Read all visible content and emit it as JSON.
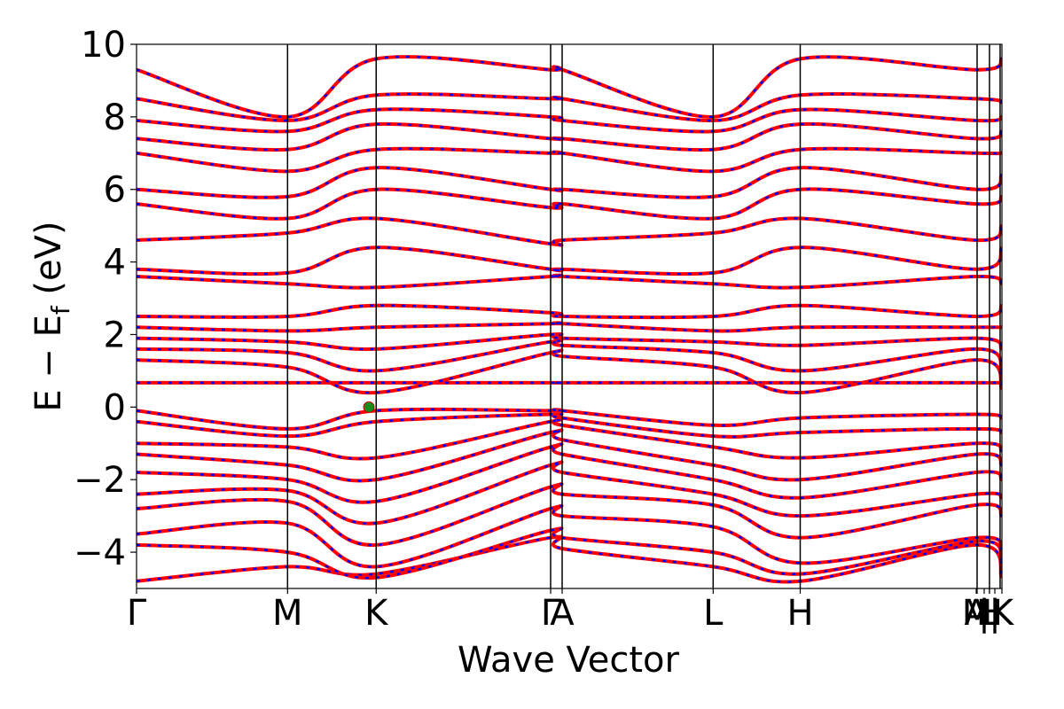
{
  "chart_data": {
    "type": "line",
    "title": "",
    "xlabel": "Wave Vector",
    "ylabel": "E − E",
    "ylabel_sub": "f",
    "ylabel_unit": "(eV)",
    "ylim": [
      -5,
      10
    ],
    "yticks": [
      -4,
      -2,
      0,
      2,
      4,
      6,
      8,
      10
    ],
    "ytick_labels": [
      "−4",
      "−2",
      "0",
      "2",
      "4",
      "6",
      "8",
      "10"
    ],
    "xlim": [
      0,
      1
    ],
    "kpoints": [
      {
        "label": "Γ",
        "x": 0.0
      },
      {
        "label": "M",
        "x": 0.1745
      },
      {
        "label": "K",
        "x": 0.2769
      },
      {
        "label": "Γ",
        "x": 0.4785
      },
      {
        "label": "A",
        "x": 0.4918
      },
      {
        "label": "L",
        "x": 0.6663
      },
      {
        "label": "H",
        "x": 0.7669
      },
      {
        "label": "A",
        "x": 0.9703
      },
      {
        "label": "M",
        "x": 0.9713
      },
      {
        "label": "|",
        "x": 0.9795
      },
      {
        "label": "L",
        "x": 0.9856
      },
      {
        "label": "|",
        "x": 0.9918
      },
      {
        "label": "H",
        "x": 0.9856
      },
      {
        "label": "K",
        "x": 1.0
      }
    ],
    "vertical_lines_x": [
      0.1745,
      0.2769,
      0.4785,
      0.4918,
      0.6663,
      0.7669,
      0.9713,
      0.9856,
      0.9979
    ],
    "series": [
      {
        "color": "#ff0000",
        "style": "solid"
      },
      {
        "color": "#0000ff",
        "style": "dashed"
      }
    ],
    "bands": [
      {
        "y": [
          -4.8,
          -4.4,
          -4.6,
          -3.6,
          -3.9,
          -4.4,
          -4.8,
          -3.8,
          -4.7
        ],
        "x": [
          0,
          0.1745,
          0.2769,
          0.4785,
          0.4918,
          0.6663,
          0.7669,
          0.9703,
          1.0
        ]
      },
      {
        "y": [
          -3.8,
          -4.0,
          -4.7,
          -3.4,
          -3.6,
          -4.0,
          -4.6,
          -3.7,
          -4.2
        ],
        "x": [
          0,
          0.1745,
          0.2769,
          0.4785,
          0.4918,
          0.6663,
          0.7669,
          0.9703,
          1.0
        ]
      },
      {
        "y": [
          -3.5,
          -3.2,
          -4.4,
          -2.8,
          -3.0,
          -3.3,
          -4.3,
          -3.6,
          -3.9
        ],
        "x": [
          0,
          0.1745,
          0.2769,
          0.4785,
          0.4918,
          0.6663,
          0.7669,
          0.9703,
          1.0
        ]
      },
      {
        "y": [
          -2.8,
          -2.6,
          -3.8,
          -2.2,
          -2.4,
          -2.7,
          -3.6,
          -2.7,
          -3.0
        ],
        "x": [
          0,
          0.1745,
          0.2769,
          0.4785,
          0.4918,
          0.6663,
          0.7669,
          0.9703,
          1.0
        ]
      },
      {
        "y": [
          -2.4,
          -2.3,
          -3.2,
          -1.6,
          -1.8,
          -2.4,
          -3.0,
          -2.4,
          -2.5
        ],
        "x": [
          0,
          0.1745,
          0.2769,
          0.4785,
          0.4918,
          0.6663,
          0.7669,
          0.9703,
          1.0
        ]
      },
      {
        "y": [
          -1.8,
          -2.0,
          -2.6,
          -1.1,
          -1.3,
          -2.0,
          -2.5,
          -1.8,
          -2.0
        ],
        "x": [
          0,
          0.1745,
          0.2769,
          0.4785,
          0.4918,
          0.6663,
          0.7669,
          0.9703,
          1.0
        ]
      },
      {
        "y": [
          -1.3,
          -1.6,
          -2.0,
          -0.7,
          -0.9,
          -1.6,
          -2.0,
          -1.3,
          -1.6
        ],
        "x": [
          0,
          0.1745,
          0.2769,
          0.4785,
          0.4918,
          0.6663,
          0.7669,
          0.9703,
          1.0
        ]
      },
      {
        "y": [
          -1.0,
          -1.1,
          -1.4,
          -0.4,
          -0.5,
          -1.1,
          -1.4,
          -1.0,
          -1.2
        ],
        "x": [
          0,
          0.1745,
          0.2769,
          0.4785,
          0.4918,
          0.6663,
          0.7669,
          0.9703,
          1.0
        ]
      },
      {
        "y": [
          -0.4,
          -0.8,
          -0.4,
          -0.2,
          -0.3,
          -0.8,
          -0.7,
          -0.6,
          -0.7
        ],
        "x": [
          0,
          0.1745,
          0.2769,
          0.4785,
          0.4918,
          0.6663,
          0.7669,
          0.9703,
          1.0
        ]
      },
      {
        "y": [
          -0.1,
          -0.6,
          -0.1,
          -0.1,
          -0.1,
          -0.5,
          -0.3,
          -0.2,
          -0.3
        ],
        "x": [
          0,
          0.1745,
          0.2769,
          0.4785,
          0.4918,
          0.6663,
          0.7669,
          0.9703,
          1.0
        ]
      },
      {
        "y": [
          0.67,
          0.67,
          0.67,
          0.67,
          0.67,
          0.67,
          0.67,
          0.67,
          0.67
        ],
        "x": [
          0,
          0.1745,
          0.2769,
          0.4785,
          0.4918,
          0.6663,
          0.7669,
          0.9703,
          1.0
        ]
      },
      {
        "y": [
          1.3,
          1.1,
          0.4,
          1.5,
          1.4,
          1.1,
          0.4,
          1.3,
          0.5
        ],
        "x": [
          0,
          0.1745,
          0.2769,
          0.4785,
          0.4918,
          0.6663,
          0.7669,
          0.9703,
          1.0
        ]
      },
      {
        "y": [
          1.6,
          1.5,
          1.0,
          1.8,
          1.7,
          1.5,
          1.0,
          1.6,
          1.0
        ],
        "x": [
          0,
          0.1745,
          0.2769,
          0.4785,
          0.4918,
          0.6663,
          0.7669,
          0.9703,
          1.0
        ]
      },
      {
        "y": [
          1.9,
          1.8,
          1.6,
          2.0,
          1.9,
          1.8,
          1.7,
          1.9,
          1.6
        ],
        "x": [
          0,
          0.1745,
          0.2769,
          0.4785,
          0.4918,
          0.6663,
          0.7669,
          0.9703,
          1.0
        ]
      },
      {
        "y": [
          2.2,
          2.1,
          2.2,
          2.3,
          2.3,
          2.1,
          2.2,
          2.2,
          2.2
        ],
        "x": [
          0,
          0.1745,
          0.2769,
          0.4785,
          0.4918,
          0.6663,
          0.7669,
          0.9703,
          1.0
        ]
      },
      {
        "y": [
          2.5,
          2.5,
          2.8,
          2.6,
          2.5,
          2.5,
          2.8,
          2.5,
          2.8
        ],
        "x": [
          0,
          0.1745,
          0.2769,
          0.4785,
          0.4918,
          0.6663,
          0.7669,
          0.9703,
          1.0
        ]
      },
      {
        "y": [
          3.6,
          3.4,
          3.3,
          3.6,
          3.6,
          3.4,
          3.3,
          3.6,
          3.4
        ],
        "x": [
          0,
          0.1745,
          0.2769,
          0.4785,
          0.4918,
          0.6663,
          0.7669,
          0.9703,
          1.0
        ]
      },
      {
        "y": [
          3.8,
          3.7,
          4.4,
          3.8,
          3.8,
          3.7,
          4.4,
          3.8,
          4.4
        ],
        "x": [
          0,
          0.1745,
          0.2769,
          0.4785,
          0.4918,
          0.6663,
          0.7669,
          0.9703,
          1.0
        ]
      },
      {
        "y": [
          4.6,
          4.8,
          5.2,
          4.5,
          4.6,
          4.8,
          5.2,
          4.6,
          5.0
        ],
        "x": [
          0,
          0.1745,
          0.2769,
          0.4785,
          0.4918,
          0.6663,
          0.7669,
          0.9703,
          1.0
        ]
      },
      {
        "y": [
          5.6,
          5.2,
          6.0,
          5.5,
          5.6,
          5.2,
          6.0,
          5.6,
          5.8
        ],
        "x": [
          0,
          0.1745,
          0.2769,
          0.4785,
          0.4918,
          0.6663,
          0.7669,
          0.9703,
          1.0
        ]
      },
      {
        "y": [
          6.0,
          5.8,
          6.6,
          6.0,
          6.0,
          5.8,
          6.6,
          6.0,
          6.4
        ],
        "x": [
          0,
          0.1745,
          0.2769,
          0.4785,
          0.4918,
          0.6663,
          0.7669,
          0.9703,
          1.0
        ]
      },
      {
        "y": [
          7.0,
          6.5,
          7.1,
          7.0,
          7.0,
          6.5,
          7.1,
          7.0,
          7.0
        ],
        "x": [
          0,
          0.1745,
          0.2769,
          0.4785,
          0.4918,
          0.6663,
          0.7669,
          0.9703,
          1.0
        ]
      },
      {
        "y": [
          7.4,
          7.1,
          7.8,
          7.4,
          7.4,
          7.1,
          7.8,
          7.4,
          7.6
        ],
        "x": [
          0,
          0.1745,
          0.2769,
          0.4785,
          0.4918,
          0.6663,
          0.7669,
          0.9703,
          1.0
        ]
      },
      {
        "y": [
          7.9,
          7.6,
          8.2,
          8.0,
          7.9,
          7.6,
          8.2,
          7.9,
          8.0
        ],
        "x": [
          0,
          0.1745,
          0.2769,
          0.4785,
          0.4918,
          0.6663,
          0.7669,
          0.9703,
          1.0
        ]
      },
      {
        "y": [
          8.5,
          7.9,
          8.6,
          8.5,
          8.5,
          7.9,
          8.6,
          8.5,
          8.4
        ],
        "x": [
          0,
          0.1745,
          0.2769,
          0.4785,
          0.4918,
          0.6663,
          0.7669,
          0.9703,
          1.0
        ]
      },
      {
        "y": [
          9.3,
          8.0,
          9.6,
          9.3,
          9.3,
          8.0,
          9.6,
          9.3,
          9.6
        ],
        "x": [
          0,
          0.1745,
          0.2769,
          0.4785,
          0.4918,
          0.6663,
          0.7669,
          0.9703,
          1.0
        ]
      }
    ],
    "marker": {
      "x": 0.2685,
      "y": 0.0,
      "color": "#1a8a1a"
    }
  }
}
